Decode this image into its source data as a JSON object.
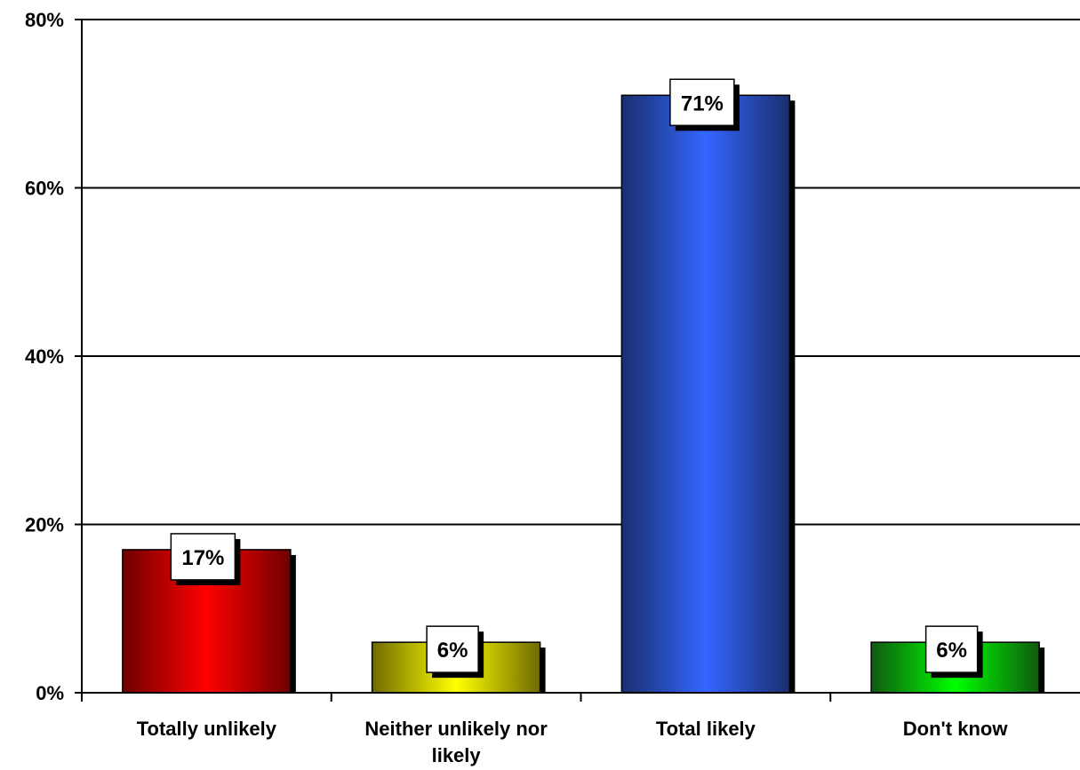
{
  "chart_data": {
    "type": "bar",
    "categories": [
      "Totally unlikely",
      "Neither unlikely nor likely",
      "Total likely",
      "Don't know"
    ],
    "category_lines": [
      [
        "Totally unlikely"
      ],
      [
        "Neither unlikely nor",
        "likely"
      ],
      [
        "Total likely"
      ],
      [
        "Don't know"
      ]
    ],
    "values": [
      17,
      6,
      71,
      6
    ],
    "data_labels": [
      "17%",
      "6%",
      "71%",
      "6%"
    ],
    "value_scale": "percent",
    "ylim": [
      0,
      80
    ],
    "yticks": [
      0,
      20,
      40,
      60,
      80
    ],
    "ytick_labels": [
      "0%",
      "20%",
      "40%",
      "60%",
      "80%"
    ],
    "grid": true,
    "legend": "none",
    "title": "",
    "xlabel": "",
    "ylabel": "",
    "colors": [
      {
        "dark": "#6e0000",
        "light": "#ff0000"
      },
      {
        "dark": "#6e6a00",
        "light": "#ffff00"
      },
      {
        "dark": "#1a2f6e",
        "light": "#3366ff"
      },
      {
        "dark": "#0f5a0f",
        "light": "#00ff00"
      }
    ]
  }
}
